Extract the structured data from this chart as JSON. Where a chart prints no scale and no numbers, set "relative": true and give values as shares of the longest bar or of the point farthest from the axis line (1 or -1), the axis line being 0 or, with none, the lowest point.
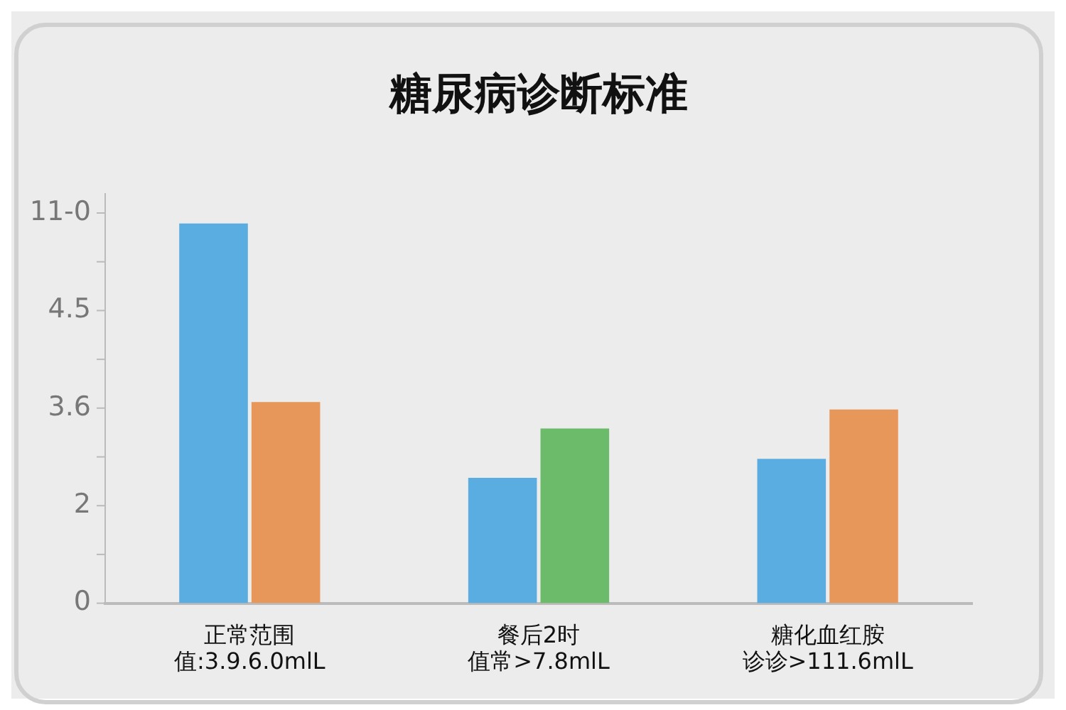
{
  "chart_data": {
    "type": "bar",
    "title": "糖尿病诊断标准",
    "categories": [
      "正常范围",
      "餐后2时",
      "糖化血红胺"
    ],
    "series": [
      {
        "color": "#5aade0",
        "values": [
          1,
          0.33,
          0.38
        ]
      },
      {
        "colors": [
          "#e8975a",
          "#6cbb6a",
          "#e8975a"
        ],
        "values": [
          0.53,
          0.46,
          0.51
        ]
      }
    ],
    "relative": true,
    "annotations": [
      "0",
      "2",
      "3.6",
      "4.5",
      "11-0",
      "值:3.9.6.0mlL",
      "值常>7.8mlL",
      "诊诊>111.6mlL"
    ],
    "grid": false,
    "legend": false
  }
}
